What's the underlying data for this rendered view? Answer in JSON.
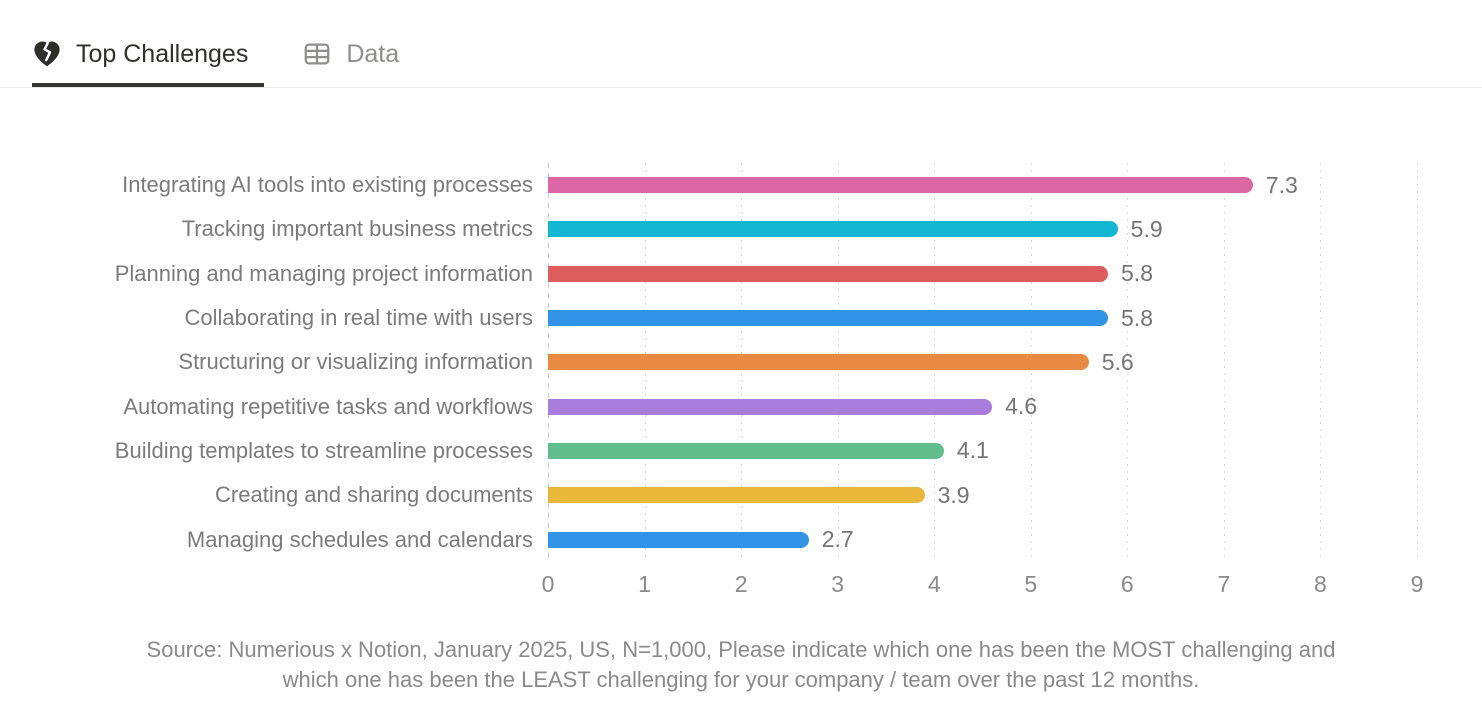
{
  "tabs": {
    "items": [
      {
        "label": "Top Challenges",
        "icon": "broken-heart-icon",
        "active": true
      },
      {
        "label": "Data",
        "icon": "table-icon",
        "active": false
      }
    ]
  },
  "chart_data": {
    "type": "bar",
    "orientation": "horizontal",
    "title": "",
    "xlabel": "",
    "ylabel": "",
    "categories": [
      "Integrating AI tools into existing processes",
      "Tracking important business metrics",
      "Planning and managing project information",
      "Collaborating in real time with users",
      "Structuring or visualizing information",
      "Automating repetitive tasks and workflows",
      "Building templates to streamline processes",
      "Creating and sharing documents",
      "Managing schedules and calendars"
    ],
    "values": [
      7.3,
      5.9,
      5.8,
      5.8,
      5.6,
      4.6,
      4.1,
      3.9,
      2.7
    ],
    "value_labels": [
      "7.3",
      "5.9",
      "5.8",
      "5.8",
      "5.6",
      "4.6",
      "4.1",
      "3.9",
      "2.7"
    ],
    "bar_colors": [
      "#db67a4",
      "#14b7d1",
      "#dd5c5c",
      "#3294e7",
      "#e98a42",
      "#a87cdb",
      "#63be8d",
      "#e9b73a",
      "#3294e7"
    ],
    "xlim": [
      0,
      9
    ],
    "x_ticks": [
      "0",
      "1",
      "2",
      "3",
      "4",
      "5",
      "6",
      "7",
      "8",
      "9"
    ],
    "grid": "dotted-vertical",
    "legend": "none"
  },
  "source_note": {
    "line1": "Source: Numerious x Notion, January 2025, US, N=1,000, Please indicate which one has been the MOST challenging and",
    "line2": "which one has been the LEAST challenging for your company /  team over the past 12 months."
  }
}
